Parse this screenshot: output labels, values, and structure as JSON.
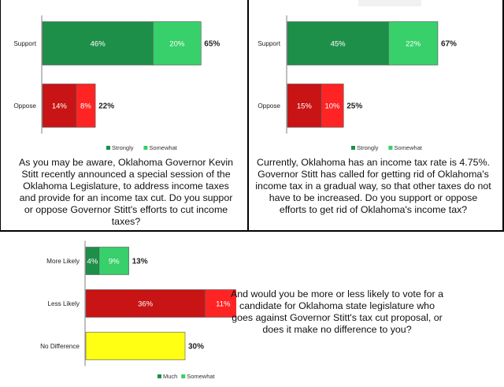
{
  "colors": {
    "strong_green": "#1e8f49",
    "light_green": "#37d06b",
    "strong_red": "#c81414",
    "light_red": "#ff2424",
    "yellow": "#ffff14"
  },
  "chart_data": [
    {
      "type": "bar",
      "orientation": "horizontal",
      "stacked": true,
      "categories": [
        "Support",
        "Oppose"
      ],
      "series": [
        {
          "name": "Strongly",
          "values": [
            46,
            14
          ],
          "labels": [
            "46%",
            "14%"
          ],
          "color": "#1e8f49"
        },
        {
          "name": "Somewhat",
          "values": [
            20,
            8
          ],
          "labels": [
            "20%",
            "8%"
          ],
          "color": "#37d06b"
        }
      ],
      "red_colors": [
        "#c81414",
        "#ff2424"
      ],
      "totals": [
        "65%",
        "22%"
      ],
      "legend": [
        "Strongly",
        "Somewhat"
      ],
      "legend_position": "bottom",
      "xlim": [
        0,
        100
      ],
      "question": "As you may be aware, Oklahoma Governor Kevin Stitt recently announced a special session of the Oklahoma Legislature, to address income taxes and provide for an income tax cut. Do you suppor or oppose Governor Stitt's efforts to cut income taxes?"
    },
    {
      "type": "bar",
      "orientation": "horizontal",
      "stacked": true,
      "categories": [
        "Support",
        "Oppose"
      ],
      "series": [
        {
          "name": "Strongly",
          "values": [
            45,
            15
          ],
          "labels": [
            "45%",
            "15%"
          ],
          "color": "#1e8f49"
        },
        {
          "name": "Somewhat",
          "values": [
            22,
            10
          ],
          "labels": [
            "22%",
            "10%"
          ],
          "color": "#37d06b"
        }
      ],
      "red_colors": [
        "#c81414",
        "#ff2424"
      ],
      "totals": [
        "67%",
        "25%"
      ],
      "legend": [
        "Strongly",
        "Somewhat"
      ],
      "legend_position": "bottom",
      "xlim": [
        0,
        100
      ],
      "question": "Currently, Oklahoma has an income tax rate is 4.75%. Governor Stitt has called for getting rid of Oklahoma's income tax in a gradual way, so that other taxes do not have to be increased. Do you support or oppose efforts to get rid of Oklahoma's income tax?"
    },
    {
      "type": "bar",
      "orientation": "horizontal",
      "stacked": true,
      "categories": [
        "More Likely",
        "Less Likely",
        "No Difference"
      ],
      "series": [
        {
          "name": "Much",
          "values": [
            4,
            36,
            30
          ],
          "labels": [
            "4%",
            "36%",
            ""
          ]
        },
        {
          "name": "Somewhat",
          "values": [
            9,
            11,
            0
          ],
          "labels": [
            "9%",
            "11%",
            ""
          ]
        }
      ],
      "row_colors": [
        [
          "#1e8f49",
          "#37d06b"
        ],
        [
          "#c81414",
          "#ff2424"
        ],
        [
          "#ffff14",
          "#ffff14"
        ]
      ],
      "totals": [
        "13%",
        "47%",
        "30%"
      ],
      "legend": [
        "Much",
        "Somewhat"
      ],
      "legend_colors": [
        "#1e8f49",
        "#37d06b"
      ],
      "legend_position": "bottom",
      "xlim": [
        0,
        100
      ],
      "question": "And would you be more or less likely to vote for a candidate for Oklahoma state legislature who goes against Governor Stitt's tax cut proposal, or does it make no difference to you?"
    }
  ]
}
